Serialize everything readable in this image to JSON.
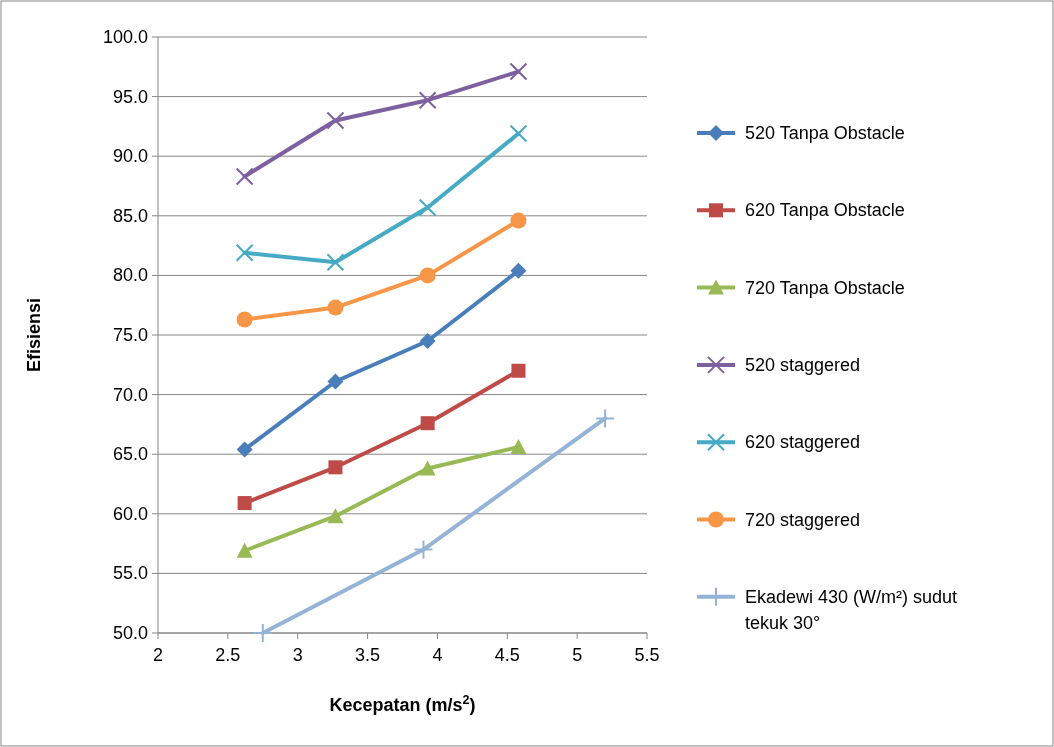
{
  "chart_data": {
    "type": "line",
    "xlabel": "Kecepatan (m/s$^{2}$)",
    "ylabel": "Efisiensi",
    "xlim": [
      2,
      5.5
    ],
    "xticks": [
      2,
      2.5,
      3,
      3.5,
      4,
      4.5,
      5,
      5.5
    ],
    "ylim": [
      50,
      100
    ],
    "yticks": [
      {
        "value": 50,
        "label": "50.0"
      },
      {
        "value": 55,
        "label": "55.0"
      },
      {
        "value": 60,
        "label": "60.0"
      },
      {
        "value": 65,
        "label": "65.0"
      },
      {
        "value": 70,
        "label": "70.0"
      },
      {
        "value": 75,
        "label": "75.0"
      },
      {
        "value": 80,
        "label": "80.0"
      },
      {
        "value": 85,
        "label": "85.0"
      },
      {
        "value": 90,
        "label": "90.0"
      },
      {
        "value": 95,
        "label": "95.0"
      },
      {
        "value": 100,
        "label": "100.0"
      }
    ],
    "grid": "y",
    "legend": "right",
    "x": [
      2.62,
      3.27,
      3.93,
      4.58
    ],
    "series": [
      {
        "name": "520 Tanpa Obstacle",
        "color": "#4a7ebb",
        "marker": "diamond",
        "values": [
          65.4,
          71.1,
          74.5,
          80.4
        ]
      },
      {
        "name": "620 Tanpa Obstacle",
        "color": "#be4b48",
        "marker": "square",
        "values": [
          60.9,
          63.9,
          67.6,
          72.0
        ]
      },
      {
        "name": "720 Tanpa Obstacle",
        "color": "#98b954",
        "marker": "triangle",
        "values": [
          56.9,
          59.8,
          63.8,
          65.6
        ]
      },
      {
        "name": "520 staggered",
        "color": "#7d60a0",
        "marker": "cross",
        "values": [
          88.3,
          93.0,
          94.7,
          97.1
        ]
      },
      {
        "name": "620 staggered",
        "color": "#46aac5",
        "marker": "cross",
        "values": [
          81.9,
          81.1,
          85.7,
          91.9
        ]
      },
      {
        "name": "720 staggered",
        "color": "#f79646",
        "marker": "circle",
        "values": [
          76.3,
          77.3,
          80.0,
          84.6
        ]
      },
      {
        "name": "Ekadewi 430 (W/m²) sudut tekuk 30°",
        "color": "#95b3d7",
        "marker": "plus",
        "x": [
          2.75,
          3.9,
          5.2
        ],
        "values": [
          50,
          57.0,
          68.0
        ]
      }
    ]
  }
}
